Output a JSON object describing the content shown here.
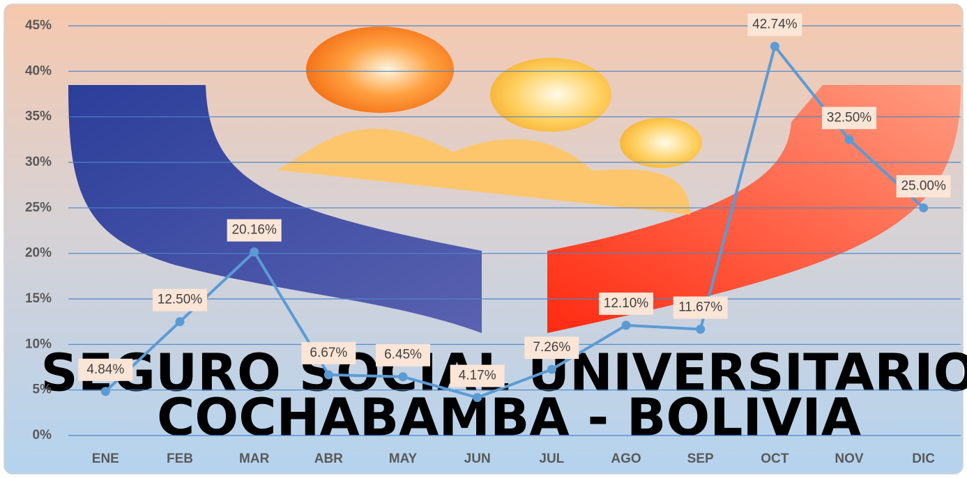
{
  "chart_data": {
    "type": "line",
    "categories": [
      "ENE",
      "FEB",
      "MAR",
      "ABR",
      "MAY",
      "JUN",
      "JUL",
      "AGO",
      "SEP",
      "OCT",
      "NOV",
      "DIC"
    ],
    "values": [
      4.84,
      12.5,
      20.16,
      6.67,
      6.45,
      4.17,
      7.26,
      12.1,
      11.67,
      42.74,
      32.5,
      25
    ],
    "value_labels": [
      "4.84%",
      "12.50%",
      "20.16%",
      "6.67%",
      "6.45%",
      "4.17%",
      "7.26%",
      "12.10%",
      "11.67%",
      "42.74%",
      "32.50%",
      "25.00%"
    ],
    "color": "#5b9bd5",
    "ylim": [
      0,
      45
    ],
    "yticks": [
      {
        "value": 0,
        "label": "0%"
      },
      {
        "value": 5,
        "label": "5%"
      },
      {
        "value": 10,
        "label": "10%"
      },
      {
        "value": 15,
        "label": "15%"
      },
      {
        "value": 20,
        "label": "20%"
      },
      {
        "value": 25,
        "label": "25%"
      },
      {
        "value": 30,
        "label": "30%"
      },
      {
        "value": 35,
        "label": "35%"
      },
      {
        "value": 40,
        "label": "40%"
      },
      {
        "value": 45,
        "label": "45%"
      }
    ],
    "grid": true,
    "watermark": [
      "SEGURO SOCIAL UNIVERSITARIO",
      "COCHABAMBA - BOLIVIA"
    ]
  }
}
